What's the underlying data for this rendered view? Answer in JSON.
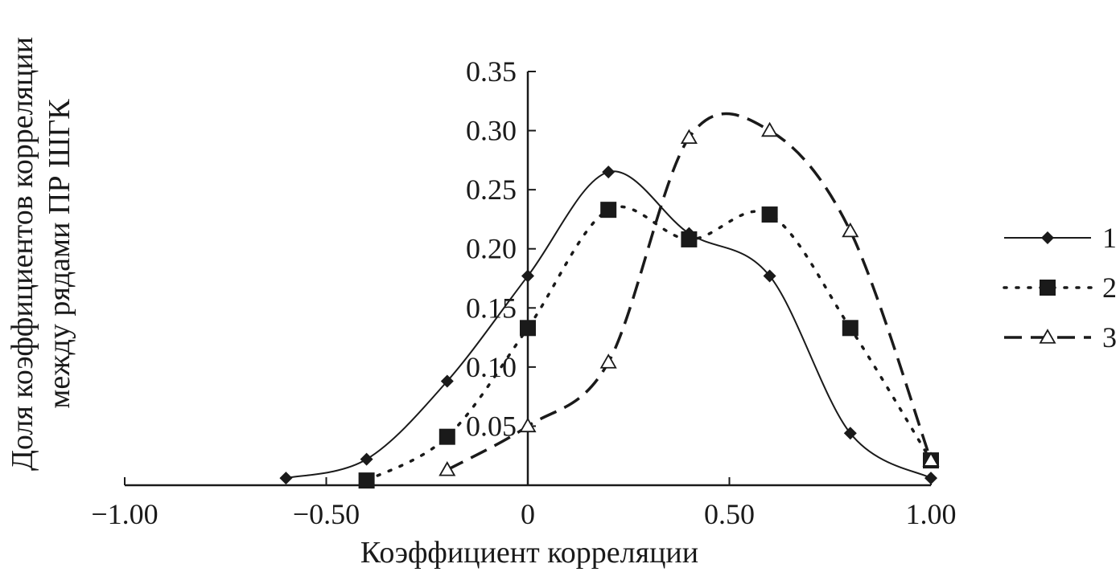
{
  "chart_data": {
    "type": "line",
    "title": "",
    "xlabel": "Коэффициент корреляции",
    "ylabel_lines": [
      "Доля коэффициентов корреляции",
      "между рядами ПР ШГК"
    ],
    "xlim": [
      -1.0,
      1.0
    ],
    "ylim": [
      0,
      0.35
    ],
    "x_ticks": [
      -1.0,
      -0.5,
      0,
      0.5,
      1.0
    ],
    "x_tick_labels": [
      "−1.00",
      "−0.50",
      "0",
      "0.50",
      "1.00"
    ],
    "y_ticks": [
      0.05,
      0.1,
      0.15,
      0.2,
      0.25,
      0.3,
      0.35
    ],
    "y_tick_labels": [
      "0.05",
      "0.10",
      "0.15",
      "0.20",
      "0.25",
      "0.30",
      "0.35"
    ],
    "grid": false,
    "legend_position": "right",
    "series": [
      {
        "name": "1",
        "marker": "diamond",
        "line_style": "solid",
        "color": "#1a1a1a",
        "x": [
          -0.6,
          -0.4,
          -0.2,
          0,
          0.2,
          0.4,
          0.6,
          0.8,
          1.0
        ],
        "y": [
          0.006,
          0.022,
          0.088,
          0.177,
          0.265,
          0.213,
          0.177,
          0.044,
          0.006
        ]
      },
      {
        "name": "2",
        "marker": "square",
        "line_style": "dotted",
        "color": "#1a1a1a",
        "x": [
          -0.4,
          -0.2,
          0,
          0.2,
          0.4,
          0.6,
          0.8,
          1.0
        ],
        "y": [
          0.004,
          0.041,
          0.133,
          0.233,
          0.208,
          0.229,
          0.133,
          0.021
        ]
      },
      {
        "name": "3",
        "marker": "triangle-open",
        "line_style": "dashed",
        "color": "#1a1a1a",
        "x": [
          -0.2,
          0,
          0.2,
          0.4,
          0.6,
          0.8,
          1.0
        ],
        "y": [
          0.013,
          0.05,
          0.104,
          0.294,
          0.3,
          0.215,
          0.021
        ]
      }
    ]
  }
}
